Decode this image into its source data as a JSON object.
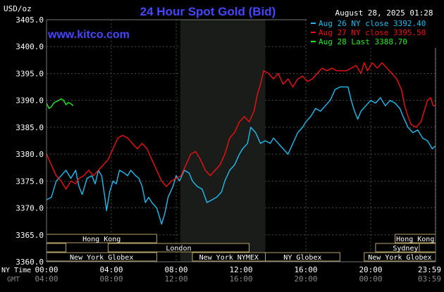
{
  "chart_data": {
    "type": "line",
    "title": "24 Hour Spot Gold (Bid)",
    "unit_label": "USD/oz",
    "site": "www.kitco.com",
    "timestamp": "August 28, 2025 01:28",
    "ylim": [
      3360,
      3405
    ],
    "y_ticks": [
      "3405.0",
      "3400.0",
      "3395.0",
      "3390.0",
      "3385.0",
      "3380.0",
      "3375.0",
      "3370.0",
      "3365.0",
      "3360.0"
    ],
    "y_tick_values": [
      3405,
      3400,
      3395,
      3390,
      3385,
      3380,
      3375,
      3370,
      3365,
      3360
    ],
    "xlim": [
      0,
      24
    ],
    "x_axis_label": "NY Time",
    "gmt_label": "GMT",
    "x_ticks": [
      {
        "h": 0,
        "ny": "00:00",
        "gmt": "04:00"
      },
      {
        "h": 4,
        "ny": "04:00",
        "gmt": "08:00"
      },
      {
        "h": 8,
        "ny": "08:00",
        "gmt": "12:00"
      },
      {
        "h": 12,
        "ny": "12:00",
        "gmt": "16:00"
      },
      {
        "h": 16,
        "ny": "16:00",
        "gmt": "20:00"
      },
      {
        "h": 20,
        "ny": "20:00",
        "gmt": "00:00"
      },
      {
        "h": 23.98,
        "ny": "23:59",
        "gmt": "03:59"
      }
    ],
    "nymex_band": {
      "start": 8.25,
      "end": 13.5
    },
    "legend": [
      {
        "text": "Aug 26 NY close 3392.40",
        "color": "#22bbee"
      },
      {
        "text": "Aug 27 NY close 3395.50",
        "color": "#ee1111"
      },
      {
        "text": "Aug 28 Last 3388.70",
        "color": "#22ee22"
      }
    ],
    "series": [
      {
        "name": "Aug 26",
        "color": "#22bbee",
        "points": [
          [
            0,
            3371.5
          ],
          [
            0.3,
            3372
          ],
          [
            0.6,
            3375
          ],
          [
            0.9,
            3376
          ],
          [
            1.2,
            3377
          ],
          [
            1.5,
            3375.5
          ],
          [
            1.8,
            3377
          ],
          [
            2.0,
            3374
          ],
          [
            2.2,
            3372.5
          ],
          [
            2.5,
            3375.5
          ],
          [
            2.8,
            3376
          ],
          [
            3.0,
            3374.5
          ],
          [
            3.2,
            3377
          ],
          [
            3.4,
            3376
          ],
          [
            3.6,
            3372
          ],
          [
            3.7,
            3369.5
          ],
          [
            3.9,
            3373
          ],
          [
            4.1,
            3375
          ],
          [
            4.3,
            3374.5
          ],
          [
            4.5,
            3377
          ],
          [
            4.8,
            3376.5
          ],
          [
            5.0,
            3376
          ],
          [
            5.2,
            3377
          ],
          [
            5.5,
            3376
          ],
          [
            5.7,
            3375.5
          ],
          [
            5.9,
            3374
          ],
          [
            6.1,
            3371
          ],
          [
            6.3,
            3372
          ],
          [
            6.5,
            3371
          ],
          [
            6.8,
            3370
          ],
          [
            7.0,
            3368
          ],
          [
            7.1,
            3367
          ],
          [
            7.3,
            3369
          ],
          [
            7.5,
            3372
          ],
          [
            7.8,
            3374
          ],
          [
            8.0,
            3376
          ],
          [
            8.2,
            3375
          ],
          [
            8.5,
            3377
          ],
          [
            8.8,
            3376.5
          ],
          [
            9.0,
            3375
          ],
          [
            9.3,
            3374
          ],
          [
            9.6,
            3373.5
          ],
          [
            9.9,
            3371
          ],
          [
            10.2,
            3371.5
          ],
          [
            10.5,
            3372
          ],
          [
            10.8,
            3373
          ],
          [
            11.0,
            3375
          ],
          [
            11.3,
            3377
          ],
          [
            11.6,
            3378
          ],
          [
            11.9,
            3380
          ],
          [
            12.1,
            3381
          ],
          [
            12.4,
            3382
          ],
          [
            12.6,
            3385
          ],
          [
            12.9,
            3384
          ],
          [
            13.2,
            3382
          ],
          [
            13.5,
            3382.5
          ],
          [
            13.8,
            3382
          ],
          [
            14.0,
            3383
          ],
          [
            14.3,
            3382
          ],
          [
            14.6,
            3381
          ],
          [
            14.9,
            3380
          ],
          [
            15.2,
            3382
          ],
          [
            15.5,
            3384
          ],
          [
            15.8,
            3385
          ],
          [
            16.0,
            3386
          ],
          [
            16.3,
            3387
          ],
          [
            16.6,
            3388.5
          ],
          [
            16.9,
            3388
          ],
          [
            17.2,
            3389
          ],
          [
            17.5,
            3390
          ],
          [
            17.8,
            3392
          ],
          [
            18.1,
            3392.5
          ],
          [
            18.4,
            3392.5
          ],
          [
            18.6,
            3392.5
          ],
          [
            18.8,
            3390
          ],
          [
            19.0,
            3388
          ],
          [
            19.2,
            3386.5
          ],
          [
            19.4,
            3388
          ],
          [
            19.7,
            3389
          ],
          [
            20.0,
            3390
          ],
          [
            20.3,
            3389.5
          ],
          [
            20.6,
            3390.5
          ],
          [
            20.9,
            3389
          ],
          [
            21.2,
            3390
          ],
          [
            21.5,
            3389.5
          ],
          [
            21.8,
            3388.5
          ],
          [
            22.0,
            3387
          ],
          [
            22.3,
            3385
          ],
          [
            22.6,
            3384
          ],
          [
            22.9,
            3384.5
          ],
          [
            23.2,
            3383
          ],
          [
            23.5,
            3382.5
          ],
          [
            23.8,
            3381
          ],
          [
            23.98,
            3381.5
          ]
        ]
      },
      {
        "name": "Aug 27",
        "color": "#ee1111",
        "points": [
          [
            0,
            3380
          ],
          [
            0.3,
            3378
          ],
          [
            0.6,
            3376
          ],
          [
            0.9,
            3375
          ],
          [
            1.2,
            3373.5
          ],
          [
            1.5,
            3375
          ],
          [
            1.8,
            3374.5
          ],
          [
            2.0,
            3375.5
          ],
          [
            2.3,
            3376
          ],
          [
            2.6,
            3377
          ],
          [
            2.9,
            3376
          ],
          [
            3.2,
            3377
          ],
          [
            3.5,
            3378
          ],
          [
            3.8,
            3379
          ],
          [
            4.1,
            3381
          ],
          [
            4.4,
            3383
          ],
          [
            4.7,
            3383.5
          ],
          [
            5.0,
            3383
          ],
          [
            5.3,
            3382
          ],
          [
            5.6,
            3381
          ],
          [
            5.9,
            3382
          ],
          [
            6.2,
            3381
          ],
          [
            6.5,
            3379
          ],
          [
            6.8,
            3377
          ],
          [
            7.1,
            3375
          ],
          [
            7.4,
            3374
          ],
          [
            7.7,
            3375
          ],
          [
            8.0,
            3375.5
          ],
          [
            8.3,
            3376
          ],
          [
            8.6,
            3378
          ],
          [
            8.9,
            3380
          ],
          [
            9.2,
            3380.5
          ],
          [
            9.5,
            3379
          ],
          [
            9.8,
            3377
          ],
          [
            10.1,
            3376
          ],
          [
            10.4,
            3377
          ],
          [
            10.7,
            3378
          ],
          [
            11.0,
            3380
          ],
          [
            11.3,
            3383
          ],
          [
            11.6,
            3384
          ],
          [
            11.9,
            3386
          ],
          [
            12.2,
            3387
          ],
          [
            12.5,
            3386
          ],
          [
            12.8,
            3388
          ],
          [
            13.0,
            3391
          ],
          [
            13.2,
            3393
          ],
          [
            13.4,
            3395.5
          ],
          [
            13.7,
            3395
          ],
          [
            14.0,
            3394
          ],
          [
            14.3,
            3395
          ],
          [
            14.6,
            3393
          ],
          [
            14.9,
            3394
          ],
          [
            15.2,
            3392.5
          ],
          [
            15.5,
            3394
          ],
          [
            15.8,
            3394.5
          ],
          [
            16.1,
            3393.5
          ],
          [
            16.4,
            3394
          ],
          [
            16.7,
            3395
          ],
          [
            17.0,
            3396
          ],
          [
            17.3,
            3395.5
          ],
          [
            17.6,
            3396
          ],
          [
            17.9,
            3395.5
          ],
          [
            18.2,
            3395.5
          ],
          [
            18.5,
            3395.5
          ],
          [
            18.8,
            3396
          ],
          [
            19.1,
            3396.5
          ],
          [
            19.4,
            3395
          ],
          [
            19.6,
            3397
          ],
          [
            19.8,
            3395.5
          ],
          [
            20.1,
            3397
          ],
          [
            20.4,
            3396
          ],
          [
            20.7,
            3397
          ],
          [
            21.0,
            3396
          ],
          [
            21.3,
            3395
          ],
          [
            21.6,
            3394
          ],
          [
            21.9,
            3392
          ],
          [
            22.1,
            3389
          ],
          [
            22.3,
            3387
          ],
          [
            22.5,
            3385.5
          ],
          [
            22.8,
            3385
          ],
          [
            23.1,
            3386
          ],
          [
            23.3,
            3388
          ],
          [
            23.5,
            3390
          ],
          [
            23.7,
            3390.5
          ],
          [
            23.85,
            3389
          ],
          [
            23.98,
            3389
          ]
        ]
      },
      {
        "name": "Aug 28",
        "color": "#22ee22",
        "points": [
          [
            0,
            3389.5
          ],
          [
            0.15,
            3388.5
          ],
          [
            0.3,
            3388.8
          ],
          [
            0.45,
            3389.5
          ],
          [
            0.6,
            3389.8
          ],
          [
            0.75,
            3390
          ],
          [
            0.9,
            3390.3
          ],
          [
            1.05,
            3390
          ],
          [
            1.2,
            3389.2
          ],
          [
            1.35,
            3389.6
          ],
          [
            1.5,
            3389.4
          ],
          [
            1.65,
            3389
          ]
        ]
      }
    ],
    "sessions_top": [
      {
        "label": "Hong Kong",
        "start": 0,
        "end": 6.8
      },
      {
        "label": "Hong Kong",
        "start": 21.5,
        "end": 24
      }
    ],
    "sessions_mid": [
      {
        "label": "London",
        "start": 3.8,
        "end": 12.5
      },
      {
        "label": "Sydney",
        "start": 20.3,
        "end": 24
      }
    ],
    "sessions_bottom_small": [
      {
        "label": "",
        "start": 0,
        "end": 1.2
      },
      {
        "label": "",
        "start": 23,
        "end": 24
      }
    ],
    "sessions_bottom": [
      {
        "label": "New York Globex",
        "start": 0,
        "end": 6.8
      },
      {
        "label": "New York NYMEX",
        "start": 9,
        "end": 13.5
      },
      {
        "label": "NY Globex",
        "start": 13.5,
        "end": 18.1
      },
      {
        "label": "New York Globex",
        "start": 19.6,
        "end": 24
      }
    ]
  }
}
